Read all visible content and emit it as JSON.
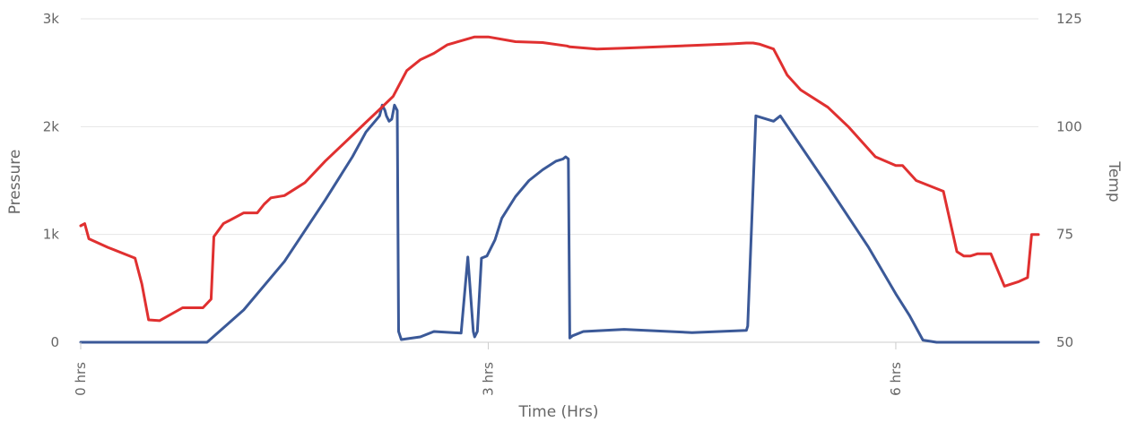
{
  "chart_data": {
    "type": "line",
    "title": "",
    "xlabel": "Time (Hrs)",
    "ylabel_left": "Pressure",
    "ylabel_right": "Temp",
    "x_ticks": [
      "0 hrs",
      "3 hrs",
      "6 hrs"
    ],
    "x_tick_values": [
      0,
      3,
      6
    ],
    "xlim": [
      0,
      7.05
    ],
    "y_left_ticks": [
      "0",
      "1k",
      "2k",
      "3k"
    ],
    "y_left_tick_values": [
      0,
      1000,
      2000,
      3000
    ],
    "y_left_lim": [
      0,
      3000
    ],
    "y_right_ticks": [
      "50",
      "75",
      "100",
      "125"
    ],
    "y_right_tick_values": [
      50,
      75,
      100,
      125
    ],
    "y_right_lim": [
      50,
      125
    ],
    "grid": true,
    "colors": {
      "pressure": "#3b5998",
      "temp": "#e03030",
      "grid": "#e6e6e6",
      "text": "#666666"
    },
    "series": [
      {
        "name": "",
        "axis": "left",
        "color": "#3b5998",
        "x": [
          0,
          0.93,
          1.2,
          1.5,
          1.8,
          2.0,
          2.1,
          2.2,
          2.22,
          2.24,
          2.25,
          2.27,
          2.29,
          2.31,
          2.33,
          2.34,
          2.36,
          2.5,
          2.6,
          2.8,
          2.85,
          2.89,
          2.9,
          2.92,
          2.95,
          2.99,
          3.05,
          3.1,
          3.2,
          3.3,
          3.4,
          3.5,
          3.55,
          3.57,
          3.59,
          3.6,
          3.62,
          3.7,
          4.0,
          4.5,
          4.9,
          4.91,
          4.97,
          5.1,
          5.15,
          5.5,
          5.8,
          6.0,
          6.1,
          6.2,
          6.3,
          7.05
        ],
        "y": [
          0,
          0,
          300,
          750,
          1320,
          1720,
          1950,
          2100,
          2200,
          2150,
          2100,
          2050,
          2070,
          2200,
          2150,
          100,
          25,
          50,
          100,
          85,
          790,
          100,
          50,
          100,
          780,
          800,
          950,
          1150,
          1350,
          1500,
          1600,
          1680,
          1700,
          1720,
          1700,
          40,
          60,
          100,
          120,
          90,
          110,
          150,
          2100,
          2050,
          2100,
          1450,
          880,
          450,
          250,
          20,
          0,
          0
        ]
      },
      {
        "name": "",
        "axis": "right",
        "color": "#e03030",
        "x": [
          0,
          0.03,
          0.06,
          0.2,
          0.4,
          0.45,
          0.5,
          0.58,
          0.75,
          0.9,
          0.96,
          0.98,
          1.05,
          1.2,
          1.3,
          1.35,
          1.4,
          1.5,
          1.6,
          1.65,
          1.8,
          2.0,
          2.1,
          2.2,
          2.3,
          2.4,
          2.5,
          2.6,
          2.7,
          2.9,
          3.0,
          3.2,
          3.4,
          3.58,
          3.6,
          3.8,
          4.0,
          4.5,
          4.8,
          4.9,
          4.95,
          5.0,
          5.1,
          5.15,
          5.2,
          5.3,
          5.5,
          5.65,
          5.85,
          6.0,
          6.05,
          6.15,
          6.35,
          6.45,
          6.5,
          6.55,
          6.6,
          6.7,
          6.8,
          6.9,
          6.97,
          7.0,
          7.05
        ],
        "y": [
          77,
          77.5,
          74,
          72,
          69.5,
          63.5,
          55.2,
          55,
          58,
          58,
          60,
          74.5,
          77.5,
          80,
          80,
          82,
          83.5,
          84,
          86,
          87,
          92,
          98,
          101,
          104,
          107,
          113,
          115.5,
          117,
          119,
          120.8,
          120.8,
          119.7,
          119.5,
          118.7,
          118.5,
          118,
          118.2,
          118.8,
          119.2,
          119.4,
          119.4,
          119.1,
          118,
          115,
          112,
          108.5,
          104.5,
          100,
          93,
          91,
          91,
          87.5,
          85,
          71,
          70,
          70,
          70.5,
          70.5,
          63,
          64,
          65,
          75,
          75
        ]
      }
    ]
  }
}
